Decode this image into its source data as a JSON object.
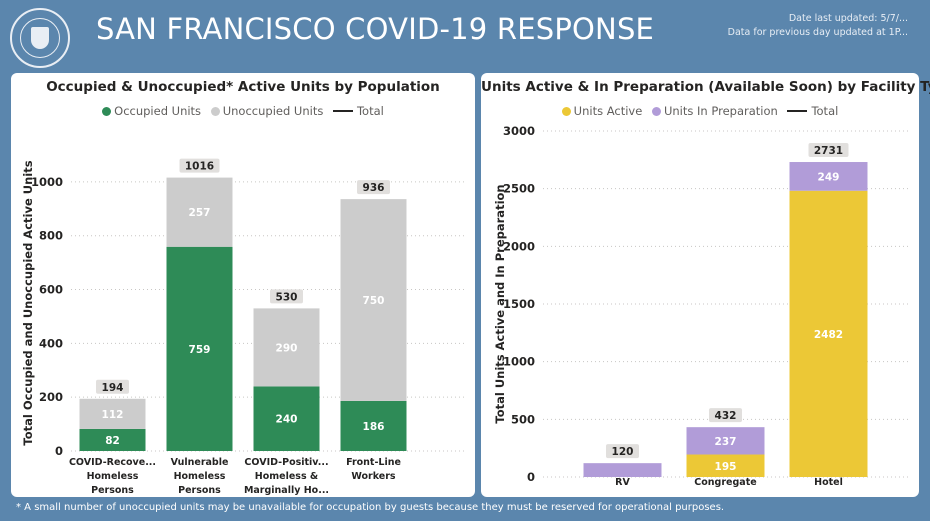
{
  "header": {
    "title": "SAN FRANCISCO COVID-19 RESPONSE",
    "date_updated": "Date last updated: 5/7/...",
    "data_updated": "Data for previous day updated at 1P..."
  },
  "footnote": "* A small number of unoccupied units may be unavailable for occupation by guests because they must be reserved for operational purposes.",
  "colors": {
    "occupied": "#2e8b57",
    "unoccupied": "#cccccc",
    "active": "#ecc836",
    "in_preparation": "#b19cd8",
    "total_line": "#252423"
  },
  "chart_data": [
    {
      "type": "bar",
      "stacked": true,
      "title": "Occupied & Unoccupied* Active Units by Population",
      "xlabel": "",
      "ylabel": "Total Occupied and Unoccupied Active Units",
      "ylim": [
        0,
        1100
      ],
      "yticks": [
        "0",
        "200",
        "400",
        "600",
        "800",
        "1000"
      ],
      "ytick_values": [
        0,
        200,
        400,
        600,
        800,
        1000
      ],
      "grid": true,
      "legend": "top-center",
      "category_labels": [
        [
          "COVID-Recove...",
          "Homeless",
          "Persons"
        ],
        [
          "Vulnerable",
          "Homeless",
          "Persons"
        ],
        [
          "COVID-Positiv...",
          "Homeless &",
          "Marginally Ho..."
        ],
        [
          "Front-Line",
          "Workers"
        ]
      ],
      "series": [
        {
          "name": "Occupied Units",
          "values": [
            82,
            759,
            240,
            186
          ],
          "labels": [
            "82",
            "759",
            "240",
            "186"
          ]
        },
        {
          "name": "Unoccupied Units",
          "values": [
            112,
            257,
            290,
            750
          ],
          "labels": [
            "112",
            "257",
            "290",
            "750"
          ]
        }
      ],
      "total_name": "Total",
      "totals": [
        194,
        1016,
        530,
        936
      ],
      "total_labels": [
        "194",
        "1016",
        "530",
        "936"
      ]
    },
    {
      "type": "bar",
      "stacked": true,
      "title": "Units Active & In Preparation (Available Soon) by Facility Type",
      "xlabel": "",
      "ylabel": "Total Units Active and In Preparation",
      "ylim": [
        0,
        3000
      ],
      "yticks": [
        "0",
        "500",
        "1000",
        "1500",
        "2000",
        "2500",
        "3000"
      ],
      "ytick_values": [
        0,
        500,
        1000,
        1500,
        2000,
        2500,
        3000
      ],
      "grid": true,
      "legend": "top-center",
      "category_labels": [
        [
          "RV"
        ],
        [
          "Congregate"
        ],
        [
          "Hotel"
        ]
      ],
      "series": [
        {
          "name": "Units Active",
          "values": [
            0,
            195,
            2482
          ],
          "labels": [
            "",
            "195",
            "2482"
          ]
        },
        {
          "name": "Units In Preparation",
          "values": [
            120,
            237,
            249
          ],
          "labels": [
            "",
            "237",
            "249"
          ]
        }
      ],
      "total_name": "Total",
      "totals": [
        120,
        432,
        2731
      ],
      "total_labels": [
        "120",
        "432",
        "2731"
      ]
    }
  ]
}
